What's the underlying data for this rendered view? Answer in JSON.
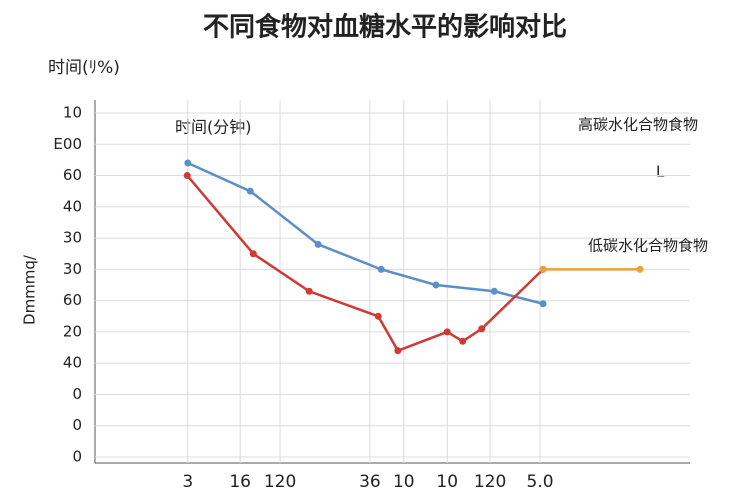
{
  "chart_data": {
    "type": "line",
    "title": "不同食物对血糖水平的影响对比",
    "corner_label": "时间(ﾘ%)",
    "x_label": "时间(分钟)",
    "y_label": "Dmmmq/",
    "annotations": [
      "L"
    ],
    "xlim": [
      0,
      100
    ],
    "xticks": [
      {
        "value": 15.6,
        "label": "3"
      },
      {
        "value": 24.4,
        "label": "16"
      },
      {
        "value": 31.1,
        "label": "120"
      },
      {
        "value": 46.2,
        "label": "36"
      },
      {
        "value": 51.9,
        "label": "10"
      },
      {
        "value": 59.2,
        "label": "10"
      },
      {
        "value": 66.4,
        "label": "120"
      },
      {
        "value": 74.8,
        "label": "5.0"
      }
    ],
    "ylim": [
      0,
      11
    ],
    "yticks": [
      {
        "value": 0,
        "label": "0"
      },
      {
        "value": 1,
        "label": "0"
      },
      {
        "value": 2,
        "label": "0"
      },
      {
        "value": 3,
        "label": "40"
      },
      {
        "value": 4,
        "label": "20"
      },
      {
        "value": 5,
        "label": "60"
      },
      {
        "value": 6,
        "label": "30"
      },
      {
        "value": 7,
        "label": "30"
      },
      {
        "value": 8,
        "label": "40"
      },
      {
        "value": 9,
        "label": "60"
      },
      {
        "value": 10,
        "label": "E00"
      },
      {
        "value": 11,
        "label": "10"
      }
    ],
    "grid": true,
    "series": [
      {
        "name": "高碳水化合物食物",
        "color": "#5b8fc9",
        "x": [
          15.6,
          26.1,
          37.5,
          48.1,
          57.3,
          67.1,
          75.3
        ],
        "values": [
          9.4,
          8.5,
          6.8,
          6.0,
          5.5,
          5.3,
          4.9
        ]
      },
      {
        "name": "低碳水化合物食物",
        "color": "#d03a35",
        "x": [
          15.5,
          26.6,
          36.0,
          47.6,
          50.9,
          59.2,
          61.8,
          65.0,
          75.3
        ],
        "values": [
          9.0,
          6.5,
          5.3,
          4.5,
          3.4,
          4.0,
          3.7,
          4.1,
          6.0
        ]
      },
      {
        "name": null,
        "color": "#e8a23a",
        "x": [
          75.3,
          91.6
        ],
        "values": [
          6.0,
          6.0
        ]
      }
    ]
  }
}
